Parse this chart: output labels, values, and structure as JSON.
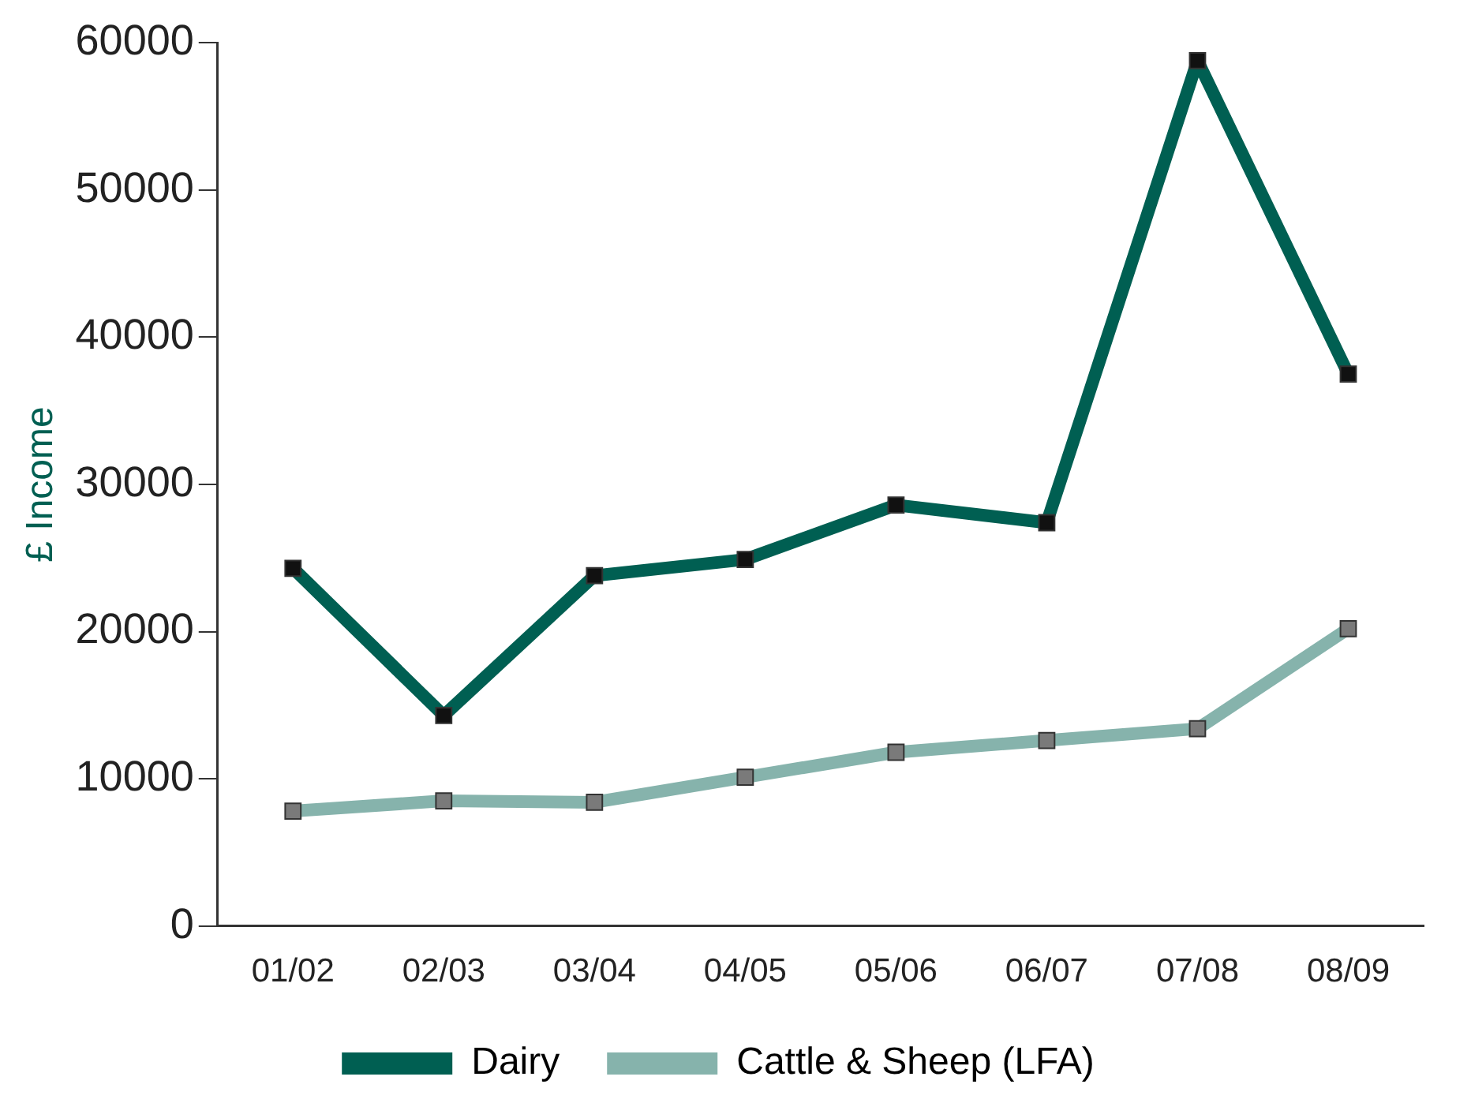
{
  "chart_data": {
    "type": "line",
    "ylabel": "£ Income",
    "categories": [
      "01/02",
      "02/03",
      "03/04",
      "04/05",
      "05/06",
      "06/07",
      "07/08",
      "08/09"
    ],
    "series": [
      {
        "name": "Dairy",
        "color": "#005f52",
        "values": [
          24300,
          14300,
          23800,
          24900,
          28600,
          27400,
          58800,
          37500
        ]
      },
      {
        "name": "Cattle & Sheep (LFA)",
        "color": "#86b3ac",
        "values": [
          7800,
          8500,
          8400,
          10100,
          11800,
          12600,
          13400,
          20200
        ]
      }
    ],
    "ylim": [
      0,
      60000
    ],
    "yticks": [
      0,
      10000,
      20000,
      30000,
      40000,
      50000,
      60000
    ],
    "grid": false,
    "legend": "bottom",
    "marker": "square",
    "line_style": "solid"
  }
}
